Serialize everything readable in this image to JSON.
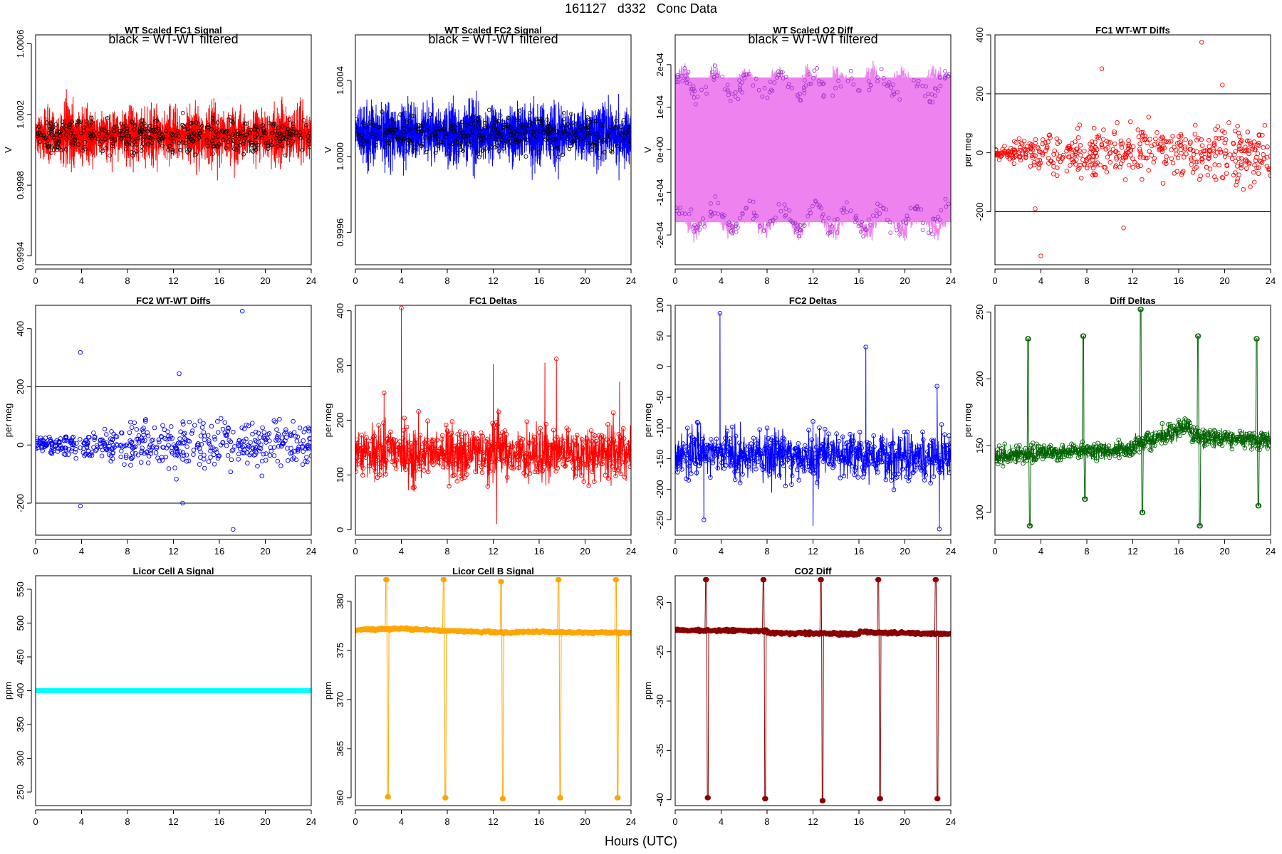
{
  "figure": {
    "title": "161127   d332   Conc Data",
    "xlabel": "Hours (UTC)"
  },
  "chart_data": [
    {
      "id": "p1",
      "type": "line",
      "title": "WT Scaled FC1 Signal",
      "note": "black = WT-WT filtered",
      "ylabel": "V",
      "color": "#ff0000",
      "xlim": [
        0,
        24
      ],
      "xticks": [
        0,
        4,
        8,
        12,
        16,
        20,
        24
      ],
      "ylim": [
        0.99935,
        1.00065
      ],
      "yticks": [
        0.9994,
        0.9998,
        1.0002,
        1.0006
      ],
      "yticklabels": [
        "0.9994",
        "0.9998",
        "1.0002",
        "1.0006"
      ],
      "baseline": 1.00008,
      "noise": 0.00012,
      "overlay": true,
      "overlay_color": "#000000",
      "note_mark_color": "#000000"
    },
    {
      "id": "p2",
      "type": "line",
      "title": "WT Scaled FC2 Signal",
      "note": "black = WT-WT filtered",
      "ylabel": "V",
      "color": "#0000ff",
      "xlim": [
        0,
        24
      ],
      "xticks": [
        0,
        4,
        8,
        12,
        16,
        20,
        24
      ],
      "ylim": [
        0.99943,
        1.00064
      ],
      "yticks": [
        0.9996,
        1.0,
        1.0004
      ],
      "yticklabels": [
        "0.9996",
        "1.0000",
        "1.0004"
      ],
      "baseline": 1.00012,
      "noise": 0.00012,
      "overlay": true,
      "overlay_color": "#000000"
    },
    {
      "id": "p3",
      "type": "line",
      "title": "WT Scaled O2 Diff",
      "note": "black = WT-WT filtered",
      "ylabel": "V",
      "color": "#ee82ee",
      "xlim": [
        0,
        24
      ],
      "xticks": [
        0,
        4,
        8,
        12,
        16,
        20,
        24
      ],
      "ylim": [
        -0.00027,
        0.00027
      ],
      "yticks": [
        -0.0002,
        -0.0001,
        0,
        0.0001,
        0.0002
      ],
      "yticklabels": [
        "-2e-04",
        "-1e-04",
        "0e+00",
        "1e-04",
        "2e-04"
      ],
      "band": [
        -0.00017,
        0.00017
      ],
      "levels": [
        0.00015,
        -0.00016
      ],
      "overlay_color": "#9932cc"
    },
    {
      "id": "p4",
      "type": "scatter",
      "title": "FC1 WT-WT Diffs",
      "ylabel": "per meg",
      "color": "#ff0000",
      "xlim": [
        0,
        24
      ],
      "xticks": [
        0,
        4,
        8,
        12,
        16,
        20,
        24
      ],
      "ylim": [
        -380,
        400
      ],
      "yticks": [
        -200,
        0,
        200,
        400
      ],
      "yticklabels": [
        "-200",
        "0",
        "200",
        "400"
      ],
      "hlines": [
        200,
        -200
      ],
      "spread": [
        20,
        80
      ],
      "outliers": [
        [
          4,
          -350
        ],
        [
          9.3,
          285
        ],
        [
          18,
          375
        ],
        [
          19.8,
          230
        ],
        [
          11.2,
          -255
        ],
        [
          3.5,
          -190
        ]
      ]
    },
    {
      "id": "p5",
      "type": "scatter",
      "title": "FC2 WT-WT Diffs",
      "ylabel": "per meg",
      "color": "#0000ff",
      "xlim": [
        0,
        24
      ],
      "xticks": [
        0,
        4,
        8,
        12,
        16,
        20,
        24
      ],
      "ylim": [
        -310,
        480
      ],
      "yticks": [
        -200,
        0,
        200,
        400
      ],
      "yticklabels": [
        "-200",
        "0",
        "200",
        "400"
      ],
      "hlines": [
        200,
        -200
      ],
      "spread": [
        20,
        70
      ],
      "outliers": [
        [
          3.9,
          318
        ],
        [
          18,
          460
        ],
        [
          12.5,
          245
        ],
        [
          17.2,
          -290
        ],
        [
          3.9,
          -210
        ],
        [
          12.8,
          -200
        ]
      ]
    },
    {
      "id": "p6",
      "type": "line",
      "title": "FC1 Deltas",
      "ylabel": "per meg",
      "color": "#ff0000",
      "xlim": [
        0,
        24
      ],
      "xticks": [
        0,
        4,
        8,
        12,
        16,
        20,
        24
      ],
      "ylim": [
        -10,
        410
      ],
      "yticks": [
        0,
        100,
        200,
        300,
        400
      ],
      "yticklabels": [
        "0",
        "100",
        "200",
        "300",
        "400"
      ],
      "baseline": 140,
      "noise": 35,
      "spikes": [
        [
          4,
          405
        ],
        [
          12,
          303
        ],
        [
          16.5,
          305
        ],
        [
          17.5,
          312
        ],
        [
          12.3,
          10
        ],
        [
          2.5,
          250
        ],
        [
          23,
          270
        ]
      ]
    },
    {
      "id": "p7",
      "type": "line",
      "title": "FC2 Deltas",
      "ylabel": "per meg",
      "color": "#0000ff",
      "xlim": [
        0,
        24
      ],
      "xticks": [
        0,
        4,
        8,
        12,
        16,
        20,
        24
      ],
      "ylim": [
        -275,
        100
      ],
      "yticks": [
        -250,
        -200,
        -150,
        -100,
        -50,
        0,
        50,
        100
      ],
      "yticklabels": [
        "-250",
        "-200",
        "-150",
        "-100",
        "-50",
        "0",
        "50",
        "100"
      ],
      "baseline": -145,
      "noise": 28,
      "spikes": [
        [
          3.9,
          87
        ],
        [
          16.6,
          32
        ],
        [
          22.8,
          -32
        ],
        [
          12,
          -260
        ],
        [
          23,
          -265
        ],
        [
          2.5,
          -250
        ]
      ]
    },
    {
      "id": "p8",
      "type": "line",
      "title": "Diff Deltas",
      "ylabel": "per meg",
      "color": "#006400",
      "xlim": [
        0,
        24
      ],
      "xticks": [
        0,
        4,
        8,
        12,
        16,
        20,
        24
      ],
      "ylim": [
        83,
        255
      ],
      "yticks": [
        100,
        150,
        200,
        250
      ],
      "yticklabels": [
        "100",
        "150",
        "200",
        "250"
      ],
      "segments": [
        [
          0,
          12,
          142,
          148
        ],
        [
          12,
          17,
          150,
          165
        ],
        [
          17,
          24,
          158,
          153
        ]
      ],
      "noise": 5,
      "events": [
        [
          2.8,
          230,
          90
        ],
        [
          7.6,
          232,
          110
        ],
        [
          12.6,
          252,
          100
        ],
        [
          17.6,
          232,
          90
        ],
        [
          22.7,
          230,
          105
        ]
      ]
    },
    {
      "id": "p9",
      "type": "line",
      "title": "Licor Cell A Signal",
      "ylabel": "ppm",
      "color": "#00ffff",
      "xlim": [
        0,
        24
      ],
      "xticks": [
        0,
        4,
        8,
        12,
        16,
        20,
        24
      ],
      "ylim": [
        230,
        570
      ],
      "yticks": [
        250,
        300,
        350,
        400,
        450,
        500,
        550
      ],
      "yticklabels": [
        "250",
        "300",
        "350",
        "400",
        "450",
        "500",
        "550"
      ],
      "constant": 400
    },
    {
      "id": "p10",
      "type": "line",
      "title": "Licor Cell B Signal",
      "ylabel": "ppm",
      "color": "#ffa500",
      "xlim": [
        0,
        24
      ],
      "xticks": [
        0,
        4,
        8,
        12,
        16,
        20,
        24
      ],
      "ylim": [
        359.2,
        382.6
      ],
      "yticks": [
        360,
        365,
        370,
        375,
        380
      ],
      "yticklabels": [
        "360",
        "365",
        "370",
        "375",
        "380"
      ],
      "segments": [
        [
          0,
          4,
          377.1,
          377.2
        ],
        [
          4,
          8,
          377.2,
          377.0
        ],
        [
          8,
          14,
          377.0,
          376.8
        ],
        [
          14,
          24,
          376.9,
          376.8
        ]
      ],
      "noise": 0.08,
      "events": [
        [
          2.6,
          382.2,
          360.1
        ],
        [
          7.6,
          382.2,
          360.0
        ],
        [
          12.6,
          382.0,
          359.9
        ],
        [
          17.6,
          382.2,
          360.0
        ],
        [
          22.6,
          382.2,
          360.0
        ]
      ]
    },
    {
      "id": "p11",
      "type": "line",
      "title": "CO2 Diff",
      "ylabel": "ppm",
      "color": "#8b0000",
      "xlim": [
        0,
        24
      ],
      "xticks": [
        0,
        4,
        8,
        12,
        16,
        20,
        24
      ],
      "ylim": [
        -40.6,
        -17.3
      ],
      "yticks": [
        -40,
        -35,
        -30,
        -25,
        -20
      ],
      "yticklabels": [
        "-40",
        "-35",
        "-30",
        "-25",
        "-20"
      ],
      "segments": [
        [
          0,
          8,
          -22.8,
          -22.9
        ],
        [
          8,
          16,
          -23.1,
          -23.2
        ],
        [
          16,
          24,
          -23.0,
          -23.2
        ]
      ],
      "noise": 0.1,
      "events": [
        [
          2.6,
          -17.7,
          -39.8
        ],
        [
          7.6,
          -17.7,
          -39.9
        ],
        [
          12.6,
          -17.7,
          -40.1
        ],
        [
          17.6,
          -17.7,
          -39.9
        ],
        [
          22.6,
          -17.7,
          -39.9
        ]
      ]
    }
  ]
}
